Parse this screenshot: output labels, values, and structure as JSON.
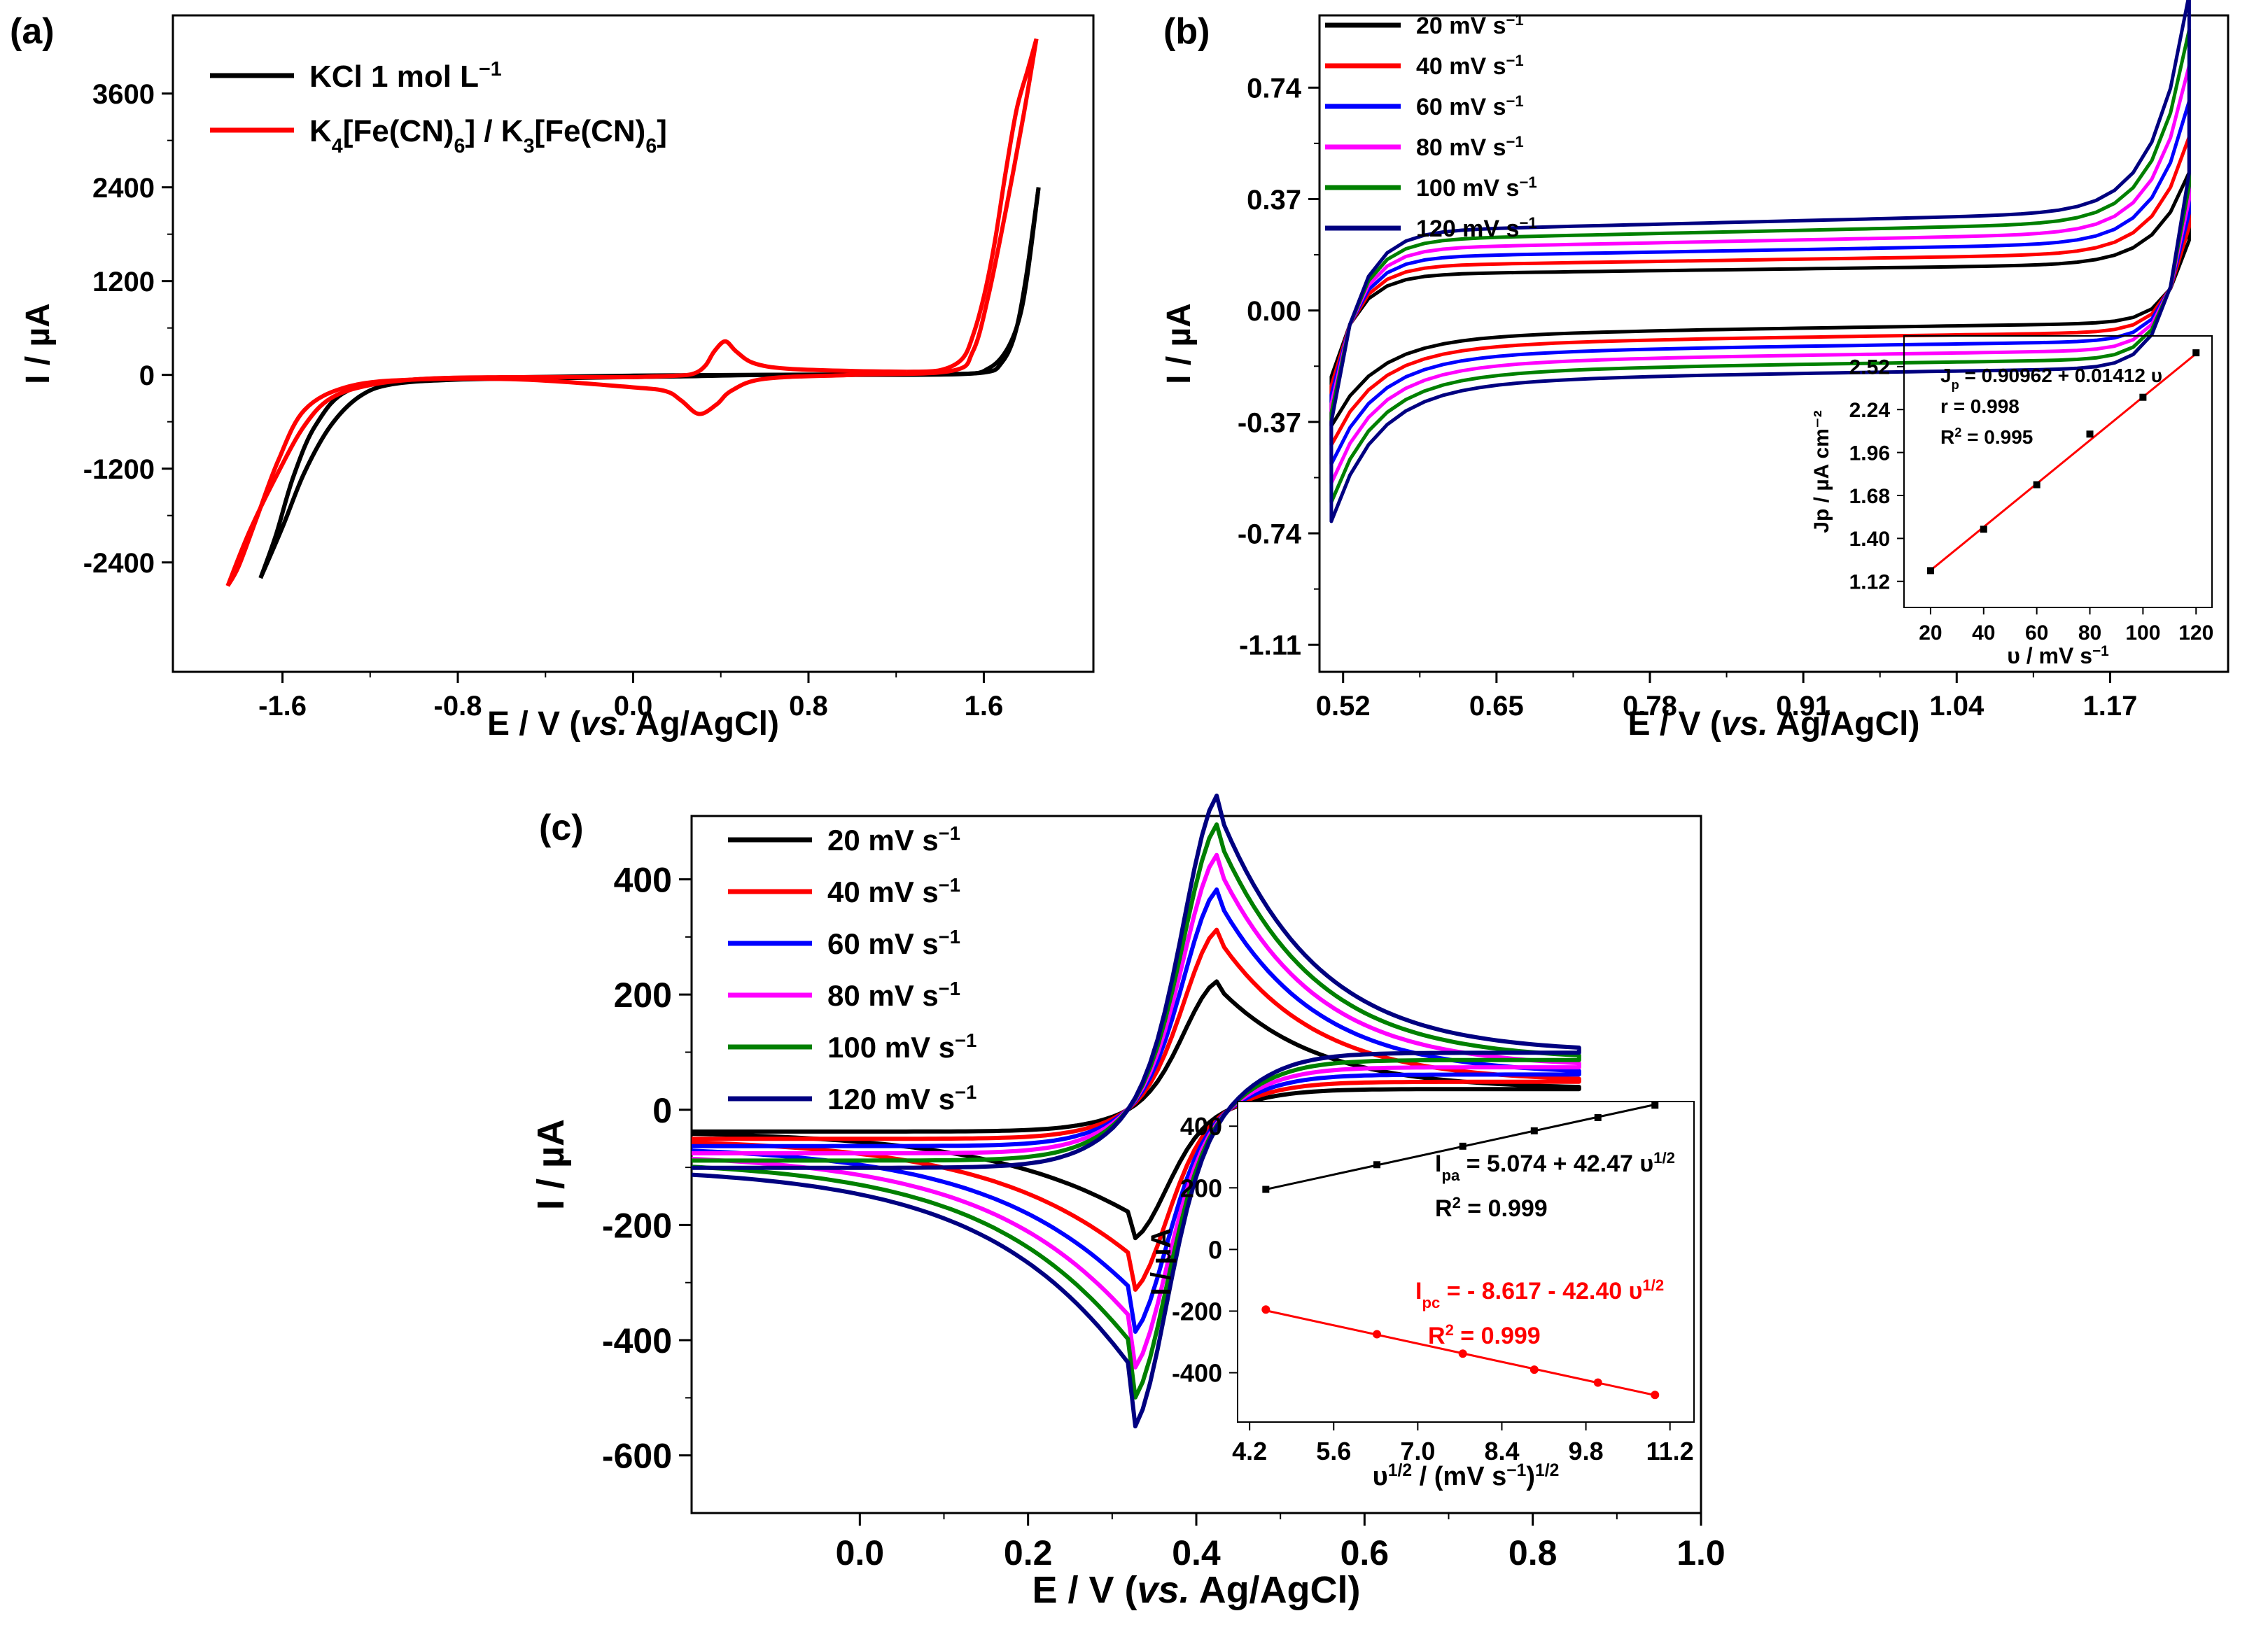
{
  "figure": {
    "background": "#ffffff"
  },
  "chart_data": [
    {
      "id": "a",
      "panel_label": "(a)",
      "type": "line",
      "xlabel_main": "E / V (",
      "xlabel_italic": "vs.",
      "xlabel_end": " Ag/AgCl)",
      "ylabel": "I / µA",
      "xlim": [
        -2.1,
        2.1
      ],
      "ylim": [
        -3800,
        4600
      ],
      "xticks": [
        -1.6,
        -0.8,
        0.0,
        0.8,
        1.6
      ],
      "xtick_labels": [
        "-1.6",
        "-0.8",
        "0.0",
        "0.8",
        "1.6"
      ],
      "yticks": [
        -2400,
        -1200,
        0,
        1200,
        2400,
        3600
      ],
      "ytick_labels": [
        "-2400",
        "-1200",
        "0",
        "1200",
        "2400",
        "3600"
      ],
      "legend_position": "top-left",
      "series": [
        {
          "name": "KCl 1 mol L⁻¹",
          "legend_main": "KCl 1 mol L",
          "legend_sup": "−1",
          "color": "#000000",
          "segments": [
            {
              "x": [
                1.0,
                1.5,
                1.62,
                1.7,
                1.76,
                1.8,
                1.85
              ],
              "y": [
                0,
                10,
                80,
                300,
                700,
                1300,
                2400
              ]
            },
            {
              "x": [
                1.85,
                1.79,
                1.74,
                1.68,
                1.6,
                1.3,
                0.5,
                0.0,
                -0.5,
                -1.0,
                -1.3,
                -1.45,
                -1.55,
                -1.63,
                -1.7
              ],
              "y": [
                2400,
                1200,
                500,
                150,
                30,
                10,
                0,
                -10,
                -30,
                -60,
                -200,
                -650,
                -1300,
                -2050,
                -2600
              ]
            },
            {
              "x": [
                -1.7,
                -1.6,
                -1.5,
                -1.38,
                -1.25,
                -1.1,
                -0.8,
                -0.3,
                0.2,
                0.6,
                1.0
              ],
              "y": [
                -2600,
                -1950,
                -1250,
                -650,
                -280,
                -120,
                -60,
                -40,
                -20,
                0,
                0
              ]
            }
          ]
        },
        {
          "name": "K₄[Fe(CN)₆] / K₃[Fe(CN)₆]",
          "legend_parts": [
            {
              "t": "K",
              "s": false
            },
            {
              "t": "4",
              "s": true
            },
            {
              "t": "[Fe(CN)",
              "s": false
            },
            {
              "t": "6",
              "s": true
            },
            {
              "t": "] / K",
              "s": false
            },
            {
              "t": "3",
              "s": true
            },
            {
              "t": "[Fe(CN)",
              "s": false
            },
            {
              "t": "6",
              "s": true
            },
            {
              "t": "]",
              "s": false
            }
          ],
          "color": "#ff0000",
          "segments": [
            {
              "x": [
                0.0,
                0.2,
                0.28,
                0.33,
                0.37,
                0.42,
                0.47,
                0.55,
                0.7,
                1.0,
                1.25
              ],
              "y": [
                -30,
                -10,
                20,
                120,
                300,
                430,
                300,
                150,
                80,
                50,
                40
              ]
            },
            {
              "x": [
                1.25,
                1.4,
                1.5,
                1.55,
                1.6,
                1.65,
                1.7,
                1.75,
                1.8,
                1.84
              ],
              "y": [
                40,
                60,
                200,
                500,
                1000,
                1700,
                2600,
                3400,
                3900,
                4300
              ]
            },
            {
              "x": [
                1.84,
                1.78,
                1.7,
                1.62,
                1.55,
                1.45,
                1.0,
                0.6,
                0.45,
                0.38,
                0.3,
                0.22,
                0.15,
                0.0,
                -0.5,
                -1.0,
                -1.3,
                -1.5,
                -1.62,
                -1.72,
                -1.8,
                -1.85
              ],
              "y": [
                4300,
                3300,
                2100,
                1000,
                300,
                50,
                0,
                -50,
                -200,
                -380,
                -500,
                -330,
                -210,
                -160,
                -60,
                -60,
                -150,
                -450,
                -1100,
                -1850,
                -2450,
                -2700
              ]
            },
            {
              "x": [
                -1.85,
                -1.75,
                -1.62,
                -1.5,
                -1.38,
                -1.2,
                -0.95,
                -0.6,
                -0.2,
                0.0
              ],
              "y": [
                -2700,
                -2000,
                -1250,
                -650,
                -300,
                -130,
                -50,
                -30,
                -30,
                -30
              ]
            }
          ]
        }
      ]
    },
    {
      "id": "b",
      "panel_label": "(b)",
      "type": "line",
      "xlabel_main": "E / V (",
      "xlabel_italic": "vs.",
      "xlabel_end": " Ag/AgCl)",
      "ylabel": "I / µA",
      "xlim": [
        0.5,
        1.27
      ],
      "ylim": [
        -1.2,
        0.98
      ],
      "xticks": [
        0.52,
        0.65,
        0.78,
        0.91,
        1.04,
        1.17
      ],
      "xtick_labels": [
        "0.52",
        "0.65",
        "0.78",
        "0.91",
        "1.04",
        "1.17"
      ],
      "yticks": [
        -1.11,
        -0.74,
        -0.37,
        0.0,
        0.37,
        0.74
      ],
      "ytick_labels": [
        "-1.11",
        "-0.74",
        "-0.37",
        "0.00",
        "0.37",
        "0.74"
      ],
      "legend_position": "top-left",
      "series": [
        {
          "name": "20 mV s⁻¹",
          "legend_main": "20 mV s",
          "legend_sup": "−1",
          "color": "#000000",
          "scan_rate": 20
        },
        {
          "name": "40 mV s⁻¹",
          "legend_main": "40 mV s",
          "legend_sup": "−1",
          "color": "#ff0000",
          "scan_rate": 40
        },
        {
          "name": "60 mV s⁻¹",
          "legend_main": "60 mV s",
          "legend_sup": "−1",
          "color": "#0000ff",
          "scan_rate": 60
        },
        {
          "name": "80 mV s⁻¹",
          "legend_main": "80 mV s",
          "legend_sup": "−1",
          "color": "#ff00ff",
          "scan_rate": 80
        },
        {
          "name": "100 mV s⁻¹",
          "legend_main": "100 mV s",
          "legend_sup": "−1",
          "color": "#008000",
          "scan_rate": 100
        },
        {
          "name": "120 mV s⁻¹",
          "legend_main": "120 mV s",
          "legend_sup": "−1",
          "color": "#000080",
          "scan_rate": 120
        }
      ],
      "inset": {
        "type": "scatter+fit",
        "xlabel_main": "υ / mV s",
        "xlabel_sup": "−1",
        "ylabel": "Jp / µA cm⁻²",
        "xlim": [
          10,
          126
        ],
        "ylim": [
          0.95,
          2.72
        ],
        "xticks": [
          20,
          40,
          60,
          80,
          100,
          120
        ],
        "xtick_labels": [
          "20",
          "40",
          "60",
          "80",
          "100",
          "120"
        ],
        "yticks": [
          1.12,
          1.4,
          1.68,
          1.96,
          2.24,
          2.52
        ],
        "ytick_labels": [
          "1.12",
          "1.40",
          "1.68",
          "1.96",
          "2.24",
          "2.52"
        ],
        "points": {
          "x": [
            20,
            40,
            60,
            80,
            100,
            120
          ],
          "y": [
            1.19,
            1.46,
            1.75,
            2.08,
            2.32,
            2.61
          ]
        },
        "fit": {
          "intercept": 0.90962,
          "slope": 0.01412,
          "x_range": [
            20,
            120
          ],
          "color": "#ff0000"
        },
        "equation_parts": [
          {
            "t": "J",
            "s": ""
          },
          {
            "t": "p",
            "s": "sub"
          },
          {
            "t": " = 0.90962 + 0.01412 υ",
            "s": ""
          }
        ],
        "r_text": "r = 0.998",
        "r2_parts": [
          {
            "t": "R",
            "s": ""
          },
          {
            "t": "2",
            "s": "sup"
          },
          {
            "t": " = 0.995",
            "s": ""
          }
        ]
      }
    },
    {
      "id": "c",
      "panel_label": "(c)",
      "type": "line",
      "xlabel_main": "E / V (",
      "xlabel_italic": "vs.",
      "xlabel_end": " Ag/AgCl)",
      "ylabel": "I / µA",
      "xlim": [
        -0.2,
        1.0
      ],
      "ylim": [
        -700,
        510
      ],
      "xticks": [
        0.0,
        0.2,
        0.4,
        0.6,
        0.8,
        1.0
      ],
      "xtick_labels": [
        "0.0",
        "0.2",
        "0.4",
        "0.6",
        "0.8",
        "1.0"
      ],
      "yticks": [
        -600,
        -400,
        -200,
        0,
        200,
        400
      ],
      "ytick_labels": [
        "-600",
        "-400",
        "-200",
        "0",
        "200",
        "400"
      ],
      "legend_position": "top-left",
      "series": [
        {
          "name": "20 mV s⁻¹",
          "legend_main": "20 mV s",
          "legend_sup": "−1",
          "color": "#000000",
          "ipa": 195,
          "ipc": -195
        },
        {
          "name": "40 mV s⁻¹",
          "legend_main": "40 mV s",
          "legend_sup": "−1",
          "color": "#ff0000",
          "ipa": 275,
          "ipc": -275
        },
        {
          "name": "60 mV s⁻¹",
          "legend_main": "60 mV s",
          "legend_sup": "−1",
          "color": "#0000ff",
          "ipa": 335,
          "ipc": -338
        },
        {
          "name": "80 mV s⁻¹",
          "legend_main": "80 mV s",
          "legend_sup": "−1",
          "color": "#ff00ff",
          "ipa": 385,
          "ipc": -390
        },
        {
          "name": "100 mV s⁻¹",
          "legend_main": "100 mV s",
          "legend_sup": "−1",
          "color": "#008000",
          "ipa": 428,
          "ipc": -432
        },
        {
          "name": "120 mV s⁻¹",
          "legend_main": "120 mV s",
          "legend_sup": "−1",
          "color": "#000080",
          "ipa": 468,
          "ipc": -472
        }
      ],
      "inset": {
        "type": "scatter+fit",
        "xlabel_parts": [
          {
            "t": "υ",
            "s": ""
          },
          {
            "t": "1/2",
            "s": "sup"
          },
          {
            "t": " / (mV s",
            "s": ""
          },
          {
            "t": "−1",
            "s": "sup"
          },
          {
            "t": ")",
            "s": ""
          },
          {
            "t": "1/2",
            "s": "sup"
          }
        ],
        "ylabel": "I / µA",
        "xlim": [
          4.0,
          11.6
        ],
        "ylim": [
          -560,
          480
        ],
        "xticks": [
          4.2,
          5.6,
          7.0,
          8.4,
          9.8,
          11.2
        ],
        "xtick_labels": [
          "4.2",
          "5.6",
          "7.0",
          "8.4",
          "9.8",
          "11.2"
        ],
        "yticks": [
          -400,
          -200,
          0,
          200,
          400
        ],
        "ytick_labels": [
          "-400",
          "-200",
          "0",
          "200",
          "400"
        ],
        "series": [
          {
            "name": "Ipa",
            "color": "#000000",
            "x": [
              4.47,
              6.32,
              7.75,
              8.94,
              10.0,
              10.95
            ],
            "y": [
              195,
              275,
              335,
              385,
              428,
              468
            ],
            "fit": {
              "intercept": 5.074,
              "slope": 42.47
            },
            "equation_parts": [
              {
                "t": "I",
                "s": ""
              },
              {
                "t": "pa",
                "s": "sub"
              },
              {
                "t": " = 5.074 + 42.47 υ",
                "s": ""
              },
              {
                "t": "1/2",
                "s": "sup"
              }
            ],
            "r2_parts": [
              {
                "t": "R",
                "s": ""
              },
              {
                "t": "2",
                "s": "sup"
              },
              {
                "t": " = 0.999",
                "s": ""
              }
            ]
          },
          {
            "name": "Ipc",
            "color": "#ff0000",
            "x": [
              4.47,
              6.32,
              7.75,
              8.94,
              10.0,
              10.95
            ],
            "y": [
              -195,
              -275,
              -338,
              -390,
              -432,
              -472
            ],
            "fit": {
              "intercept": -8.617,
              "slope": -42.4
            },
            "equation_parts": [
              {
                "t": "I",
                "s": ""
              },
              {
                "t": "pc",
                "s": "sub"
              },
              {
                "t": " = - 8.617  - 42.40 υ",
                "s": ""
              },
              {
                "t": "1/2",
                "s": "sup"
              }
            ],
            "r2_parts": [
              {
                "t": "R",
                "s": ""
              },
              {
                "t": "2",
                "s": "sup"
              },
              {
                "t": " = 0.999",
                "s": ""
              }
            ]
          }
        ]
      }
    }
  ]
}
